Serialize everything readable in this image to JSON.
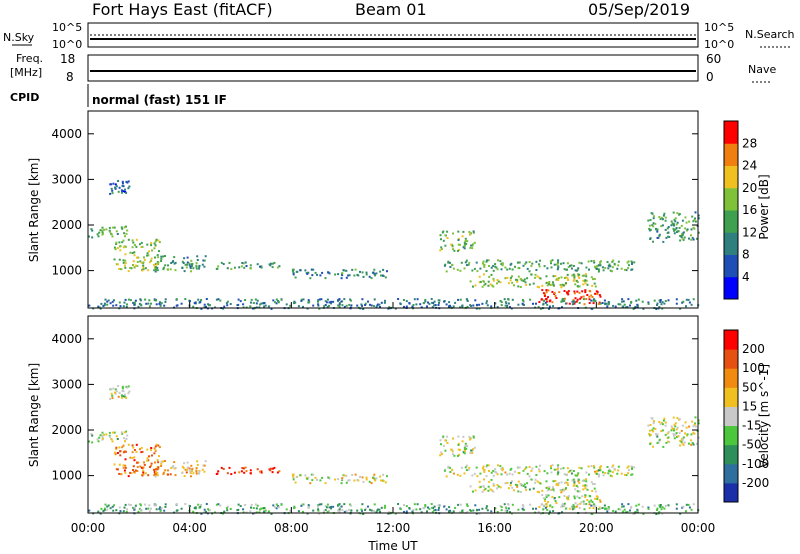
{
  "header": {
    "radar": "Fort Hays East (fitACF)",
    "beam": "Beam 01",
    "date": "05/Sep/2019"
  },
  "noise_panel": {
    "left_label": "N.Sky",
    "right_label": "N.Search",
    "left_ticks": [
      "10^5",
      "10^0"
    ],
    "right_ticks": [
      "10^5",
      "10^0"
    ]
  },
  "freq_panel": {
    "left_label_1": "Freq.",
    "left_label_2": "[MHz]",
    "right_label": "Nave",
    "left_ticks": [
      "18",
      "8"
    ],
    "right_ticks": [
      "60",
      "0"
    ],
    "freq_value_mhz": 10.5
  },
  "cpid": {
    "label": "CPID",
    "text": "normal (fast) 151 IF"
  },
  "colors": {
    "power_scale": [
      "#0000ff",
      "#1f4fb4",
      "#2f7f7f",
      "#3ea050",
      "#7fc23a",
      "#f0c020",
      "#f07f10",
      "#ff0000"
    ],
    "velocity_scale": [
      "#1a2fa8",
      "#2f6fa0",
      "#2f8f5a",
      "#4cc63c",
      "#c8c8c8",
      "#f0c020",
      "#f08a10",
      "#e65010",
      "#ff0000"
    ]
  },
  "chart_data": [
    {
      "type": "heatmap",
      "name": "power",
      "ylabel": "Slant Range [km]",
      "ylim": [
        180,
        4500
      ],
      "yticks": [
        "4000",
        "3000",
        "2000",
        "1000"
      ],
      "colorbar": {
        "label": "Power [dB]",
        "ticks": [
          "28",
          "24",
          "20",
          "16",
          "12",
          "8",
          "4"
        ],
        "range": [
          0,
          32
        ]
      },
      "features": [
        {
          "t0": 0.0,
          "t1": 1.6,
          "r0": 1750,
          "r1": 2000,
          "level": 0.45
        },
        {
          "t0": 1.0,
          "t1": 2.8,
          "r0": 1000,
          "r1": 1700,
          "level": 0.55
        },
        {
          "t0": 2.6,
          "t1": 4.6,
          "r0": 1000,
          "r1": 1350,
          "level": 0.4
        },
        {
          "t0": 0.8,
          "t1": 1.6,
          "r0": 2700,
          "r1": 3000,
          "level": 0.25
        },
        {
          "t0": 5.0,
          "t1": 7.5,
          "r0": 1050,
          "r1": 1200,
          "level": 0.4
        },
        {
          "t0": 8.0,
          "t1": 11.8,
          "r0": 850,
          "r1": 1050,
          "level": 0.35
        },
        {
          "t0": 13.8,
          "t1": 15.2,
          "r0": 1450,
          "r1": 1900,
          "level": 0.5
        },
        {
          "t0": 14.0,
          "t1": 21.5,
          "r0": 1000,
          "r1": 1250,
          "level": 0.45
        },
        {
          "t0": 15.0,
          "t1": 20.0,
          "r0": 650,
          "r1": 950,
          "level": 0.55
        },
        {
          "t0": 17.6,
          "t1": 20.2,
          "r0": 280,
          "r1": 600,
          "level": 0.95
        },
        {
          "t0": 22.0,
          "t1": 24.0,
          "r0": 1650,
          "r1": 2300,
          "level": 0.4
        },
        {
          "t0": 0.0,
          "t1": 24.0,
          "r0": 180,
          "r1": 400,
          "level": 0.3
        }
      ]
    },
    {
      "type": "heatmap",
      "name": "velocity",
      "ylabel": "Slant Range [km]",
      "ylim": [
        180,
        4500
      ],
      "yticks": [
        "4000",
        "3000",
        "2000",
        "1000"
      ],
      "xlabel": "Time UT",
      "xticks": [
        "00:00",
        "04:00",
        "08:00",
        "12:00",
        "16:00",
        "20:00",
        "00:00"
      ],
      "xlim_hours": [
        0,
        24
      ],
      "colorbar": {
        "label": "Velocity [m s^-1]",
        "ticks": [
          "200",
          "100",
          "50",
          "15",
          "-15",
          "-50",
          "-100",
          "-200"
        ],
        "range": [
          -250,
          250
        ]
      },
      "features": [
        {
          "t0": 0.0,
          "t1": 1.6,
          "r0": 1750,
          "r1": 2000,
          "level": 0.45
        },
        {
          "t0": 1.0,
          "t1": 2.8,
          "r0": 1000,
          "r1": 1700,
          "level": 0.75
        },
        {
          "t0": 2.6,
          "t1": 4.6,
          "r0": 1000,
          "r1": 1350,
          "level": 0.65
        },
        {
          "t0": 0.8,
          "t1": 1.6,
          "r0": 2700,
          "r1": 3000,
          "level": 0.5
        },
        {
          "t0": 5.0,
          "t1": 7.5,
          "r0": 1050,
          "r1": 1200,
          "level": 0.9
        },
        {
          "t0": 8.0,
          "t1": 11.8,
          "r0": 850,
          "r1": 1050,
          "level": 0.55
        },
        {
          "t0": 13.8,
          "t1": 15.2,
          "r0": 1450,
          "r1": 1900,
          "level": 0.5
        },
        {
          "t0": 14.0,
          "t1": 21.5,
          "r0": 1000,
          "r1": 1250,
          "level": 0.5
        },
        {
          "t0": 15.0,
          "t1": 20.0,
          "r0": 650,
          "r1": 950,
          "level": 0.5
        },
        {
          "t0": 17.6,
          "t1": 20.2,
          "r0": 280,
          "r1": 600,
          "level": 0.5
        },
        {
          "t0": 22.0,
          "t1": 24.0,
          "r0": 1650,
          "r1": 2300,
          "level": 0.5
        },
        {
          "t0": 0.0,
          "t1": 24.0,
          "r0": 180,
          "r1": 400,
          "level": 0.35
        }
      ]
    }
  ]
}
